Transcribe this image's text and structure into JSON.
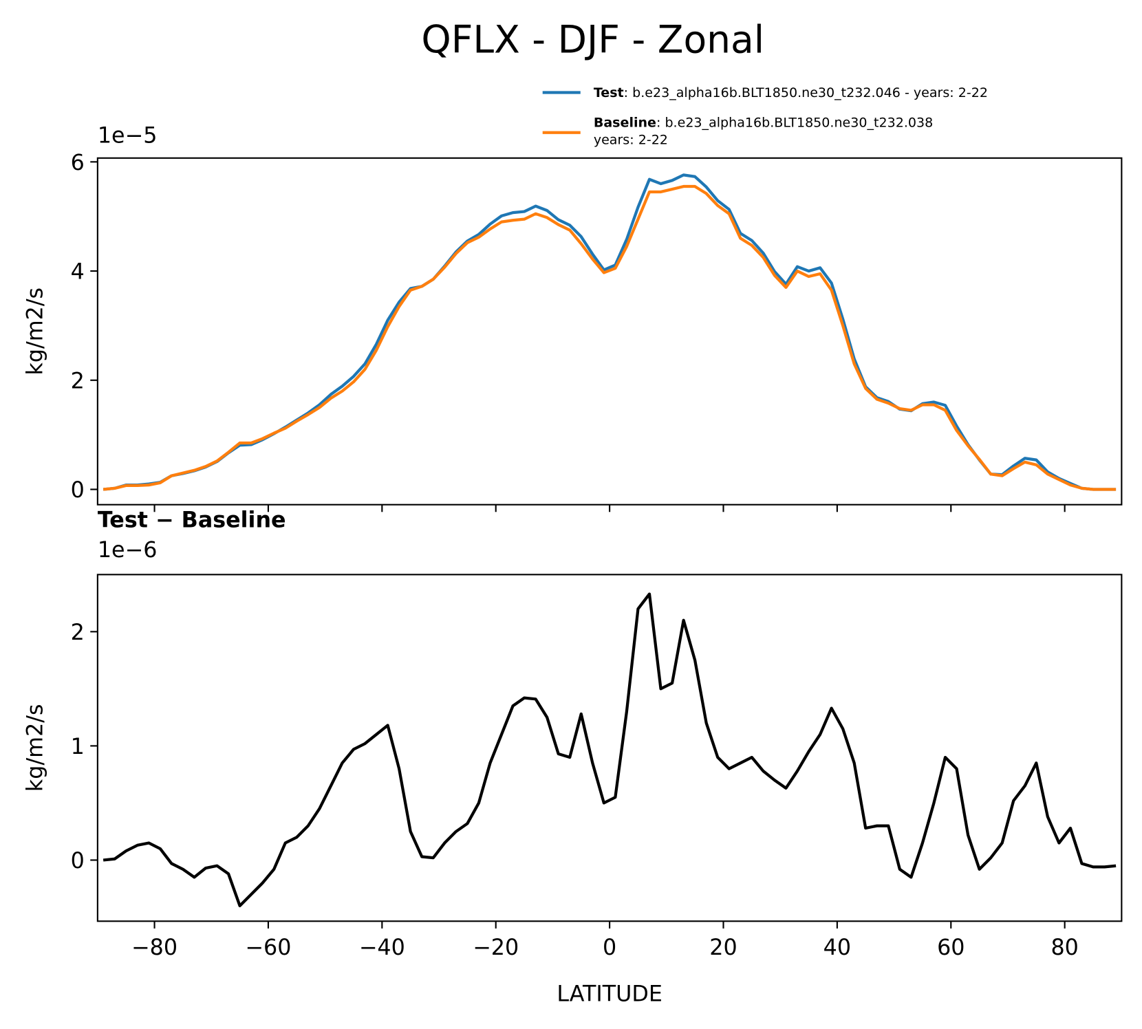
{
  "title": "QFLX - DJF - Zonal",
  "chart_data": [
    {
      "type": "line",
      "ylabel": "kg/m2/s",
      "offset_text": "1e−5",
      "xlim": [
        -90,
        90
      ],
      "ylim": [
        -0.28,
        6.07
      ],
      "yticks": [
        0,
        2,
        4,
        6
      ],
      "xticks": [
        -80,
        -60,
        -40,
        -20,
        0,
        20,
        40,
        60,
        80
      ],
      "show_xticklabels": false,
      "x": [
        -89,
        -87,
        -85,
        -83,
        -81,
        -79,
        -77,
        -75,
        -73,
        -71,
        -69,
        -67,
        -65,
        -63,
        -61,
        -59,
        -57,
        -55,
        -53,
        -51,
        -49,
        -47,
        -45,
        -43,
        -41,
        -39,
        -37,
        -35,
        -33,
        -31,
        -29,
        -27,
        -25,
        -23,
        -21,
        -19,
        -17,
        -15,
        -13,
        -11,
        -9,
        -7,
        -5,
        -3,
        -1,
        1,
        3,
        5,
        7,
        9,
        11,
        13,
        15,
        17,
        19,
        21,
        23,
        25,
        27,
        29,
        31,
        33,
        35,
        37,
        39,
        41,
        43,
        45,
        47,
        49,
        51,
        53,
        55,
        57,
        59,
        61,
        63,
        65,
        67,
        69,
        71,
        73,
        75,
        77,
        79,
        81,
        83,
        85,
        87,
        89
      ],
      "series": [
        {
          "name": "Test",
          "detail": [
            ": b.e23_alpha16b.BLT1850.ne30_t232.046 - years: 2-22"
          ],
          "color": "#1f77b4",
          "values": [
            0.0,
            0.02,
            0.08,
            0.08,
            0.1,
            0.13,
            0.25,
            0.29,
            0.34,
            0.41,
            0.51,
            0.67,
            0.81,
            0.82,
            0.91,
            1.02,
            1.14,
            1.27,
            1.4,
            1.55,
            1.74,
            1.89,
            2.07,
            2.3,
            2.66,
            3.1,
            3.43,
            3.68,
            3.72,
            3.85,
            4.09,
            4.35,
            4.55,
            4.67,
            4.86,
            5.01,
            5.07,
            5.09,
            5.19,
            5.11,
            4.94,
            4.84,
            4.63,
            4.31,
            4.02,
            4.11,
            4.58,
            5.17,
            5.68,
            5.6,
            5.66,
            5.76,
            5.73,
            5.54,
            5.29,
            5.13,
            4.69,
            4.56,
            4.33,
            3.99,
            3.76,
            4.08,
            4.0,
            4.06,
            3.78,
            3.12,
            2.39,
            1.88,
            1.68,
            1.61,
            1.47,
            1.44,
            1.57,
            1.6,
            1.54,
            1.16,
            0.82,
            0.54,
            0.28,
            0.27,
            0.43,
            0.57,
            0.54,
            0.32,
            0.2,
            0.11,
            0.02,
            0.0,
            0.0,
            0.0
          ]
        },
        {
          "name": "Baseline",
          "detail": [
            ": b.e23_alpha16b.BLT1850.ne30_t232.038",
            "years: 2-22"
          ],
          "color": "#ff7f0e",
          "values": [
            0.0,
            0.02,
            0.07,
            0.07,
            0.08,
            0.12,
            0.25,
            0.3,
            0.35,
            0.42,
            0.52,
            0.68,
            0.85,
            0.85,
            0.93,
            1.03,
            1.12,
            1.25,
            1.37,
            1.5,
            1.67,
            1.8,
            1.97,
            2.2,
            2.55,
            2.98,
            3.35,
            3.65,
            3.72,
            3.85,
            4.07,
            4.32,
            4.52,
            4.62,
            4.77,
            4.9,
            4.93,
            4.95,
            5.05,
            4.98,
            4.85,
            4.75,
            4.5,
            4.22,
            3.97,
            4.05,
            4.45,
            4.95,
            5.45,
            5.45,
            5.5,
            5.55,
            5.55,
            5.42,
            5.2,
            5.05,
            4.6,
            4.47,
            4.25,
            3.92,
            3.7,
            4.0,
            3.9,
            3.95,
            3.65,
            3.0,
            2.3,
            1.85,
            1.65,
            1.58,
            1.48,
            1.45,
            1.55,
            1.55,
            1.45,
            1.08,
            0.8,
            0.55,
            0.28,
            0.25,
            0.38,
            0.5,
            0.45,
            0.28,
            0.18,
            0.08,
            0.02,
            0.0,
            0.0,
            0.0
          ]
        }
      ]
    },
    {
      "type": "line",
      "title": "Test − Baseline",
      "ylabel": "kg/m2/s",
      "xlabel": "LATITUDE",
      "offset_text": "1e−6",
      "xlim": [
        -90,
        90
      ],
      "ylim": [
        -0.535,
        2.5
      ],
      "yticks": [
        0,
        1,
        2
      ],
      "xticks": [
        {
          "value": -80,
          "label": "−80"
        },
        {
          "value": -60,
          "label": "−60"
        },
        {
          "value": -40,
          "label": "−40"
        },
        {
          "value": -20,
          "label": "−20"
        },
        0,
        20,
        40,
        60,
        80
      ],
      "show_xticklabels": true,
      "x": [
        -89,
        -87,
        -85,
        -83,
        -81,
        -79,
        -77,
        -75,
        -73,
        -71,
        -69,
        -67,
        -65,
        -63,
        -61,
        -59,
        -57,
        -55,
        -53,
        -51,
        -49,
        -47,
        -45,
        -43,
        -41,
        -39,
        -37,
        -35,
        -33,
        -31,
        -29,
        -27,
        -25,
        -23,
        -21,
        -19,
        -17,
        -15,
        -13,
        -11,
        -9,
        -7,
        -5,
        -3,
        -1,
        1,
        3,
        5,
        7,
        9,
        11,
        13,
        15,
        17,
        19,
        21,
        23,
        25,
        27,
        29,
        31,
        33,
        35,
        37,
        39,
        41,
        43,
        45,
        47,
        49,
        51,
        53,
        55,
        57,
        59,
        61,
        63,
        65,
        67,
        69,
        71,
        73,
        75,
        77,
        79,
        81,
        83,
        85,
        87,
        89
      ],
      "series": [
        {
          "color": "#000000",
          "values": [
            0.0,
            0.01,
            0.08,
            0.13,
            0.15,
            0.1,
            -0.03,
            -0.08,
            -0.15,
            -0.07,
            -0.05,
            -0.12,
            -0.4,
            -0.3,
            -0.2,
            -0.08,
            0.15,
            0.2,
            0.3,
            0.45,
            0.65,
            0.85,
            0.97,
            1.02,
            1.1,
            1.18,
            0.8,
            0.25,
            0.03,
            0.02,
            0.15,
            0.25,
            0.32,
            0.5,
            0.85,
            1.1,
            1.35,
            1.42,
            1.41,
            1.25,
            0.93,
            0.9,
            1.28,
            0.85,
            0.5,
            0.55,
            1.3,
            2.2,
            2.33,
            1.5,
            1.55,
            2.1,
            1.75,
            1.2,
            0.9,
            0.8,
            0.85,
            0.9,
            0.78,
            0.7,
            0.63,
            0.78,
            0.95,
            1.1,
            1.33,
            1.15,
            0.85,
            0.28,
            0.3,
            0.3,
            -0.08,
            -0.15,
            0.15,
            0.5,
            0.9,
            0.8,
            0.22,
            -0.08,
            0.02,
            0.15,
            0.52,
            0.65,
            0.85,
            0.38,
            0.15,
            0.28,
            -0.03,
            -0.06,
            -0.06,
            -0.05
          ]
        }
      ]
    }
  ]
}
